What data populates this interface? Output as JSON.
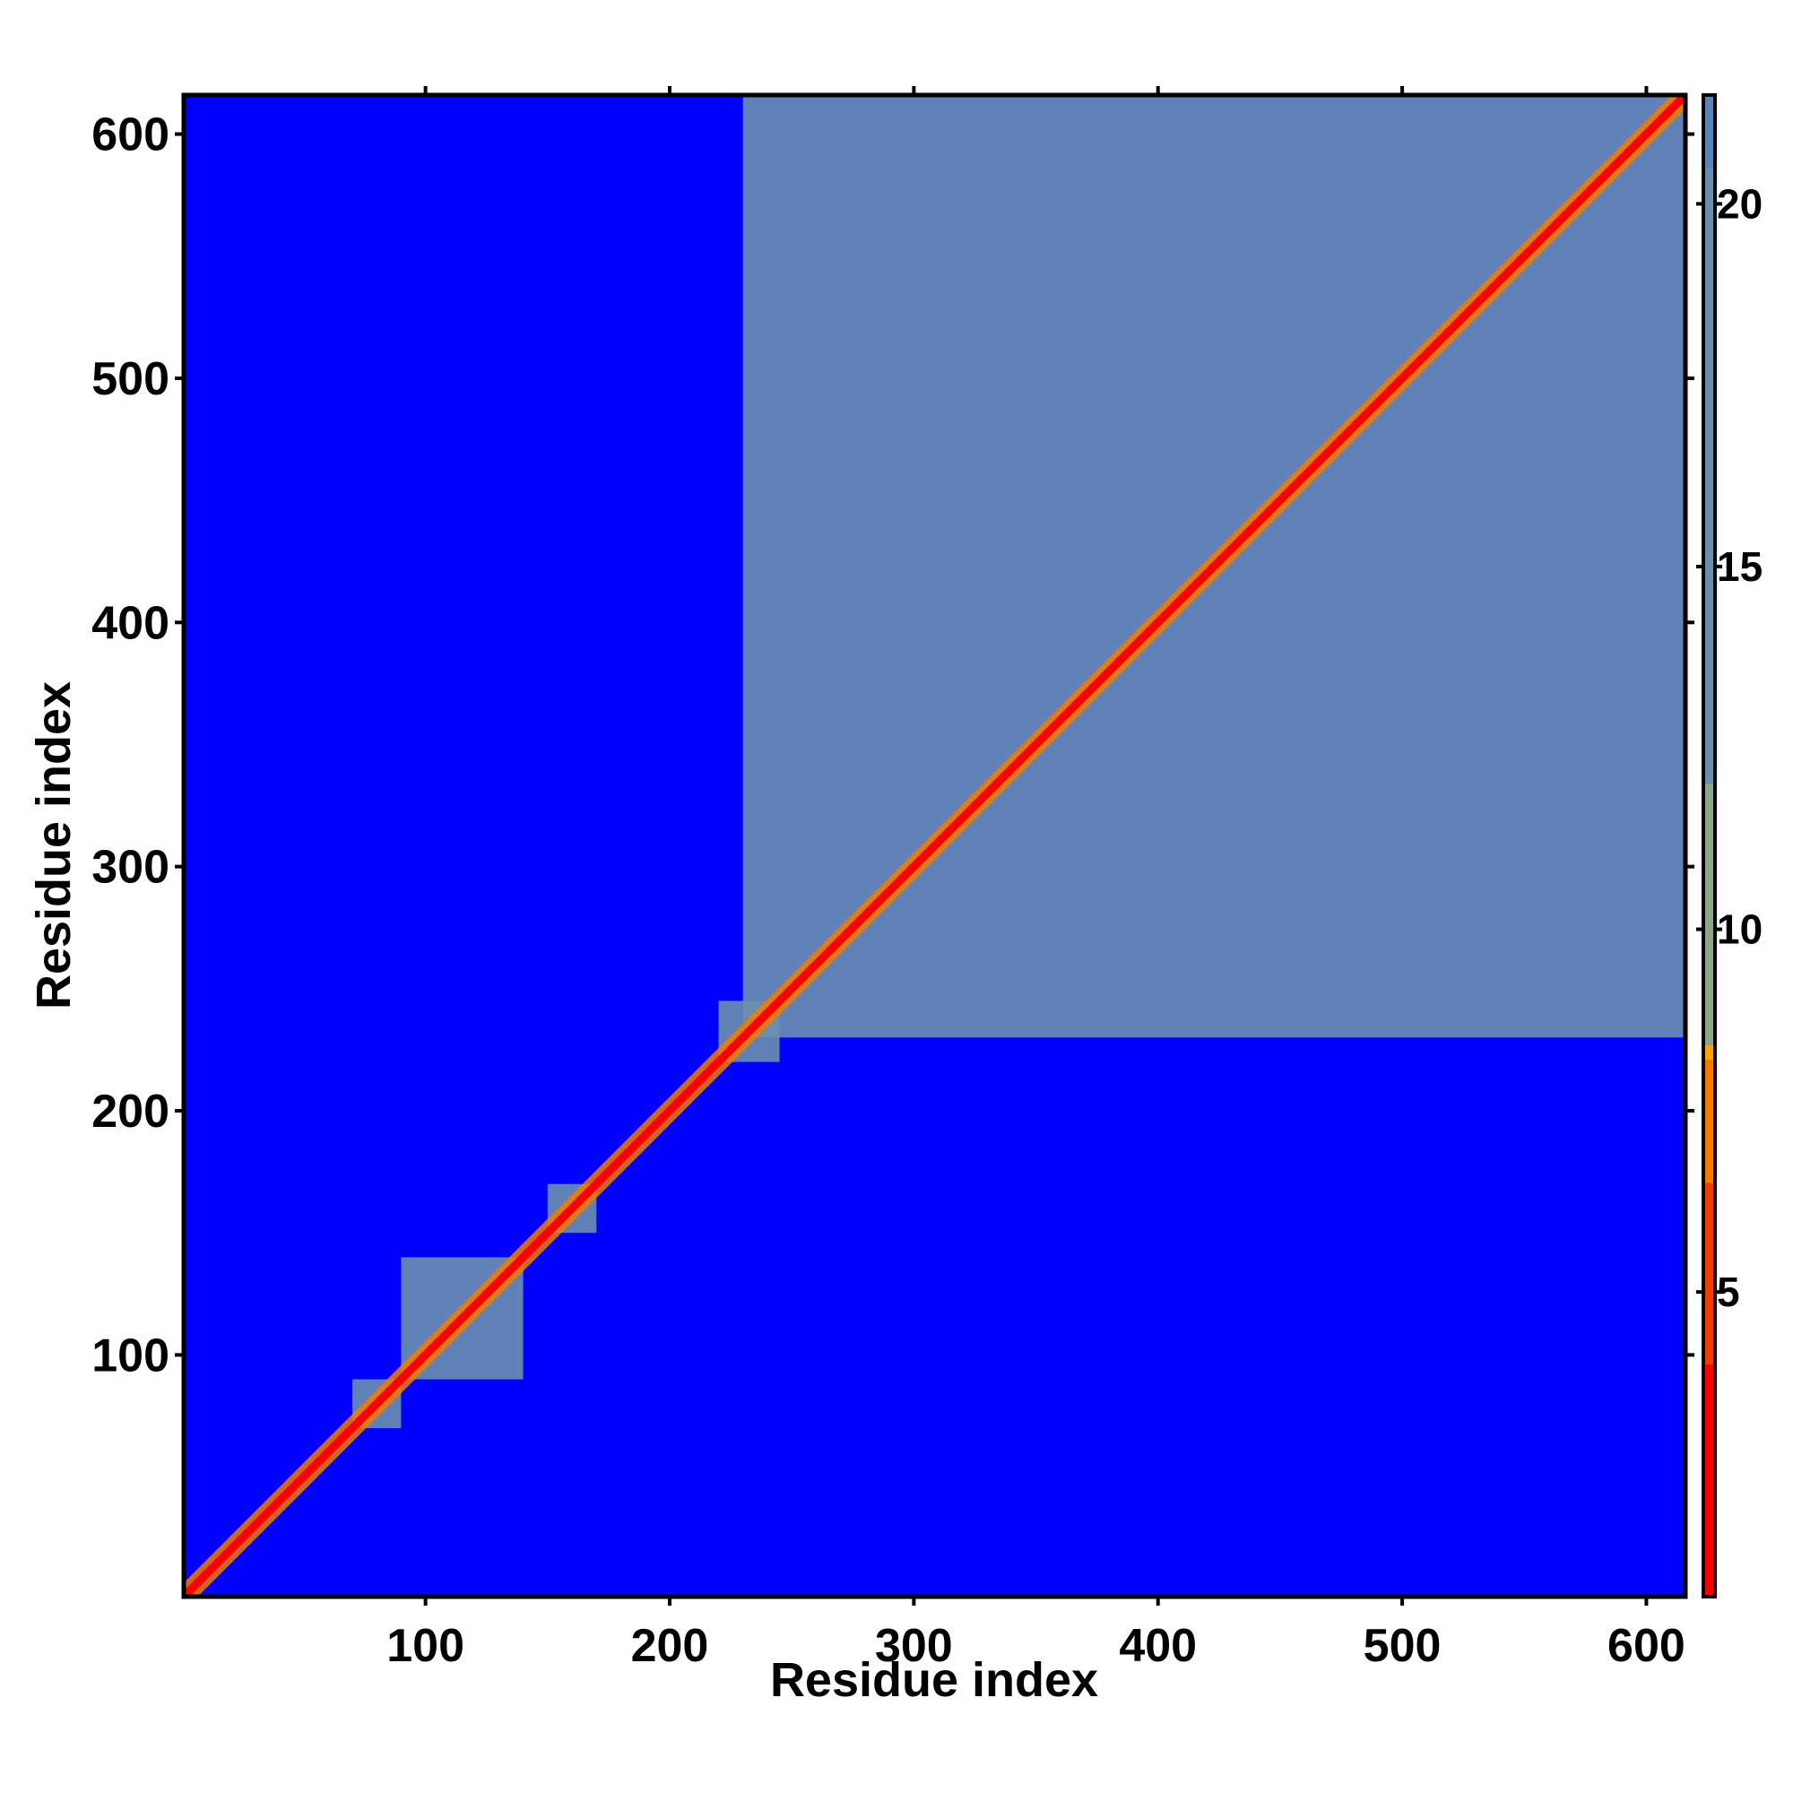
{
  "chart_data": {
    "type": "heatmap",
    "title": "",
    "xlabel": "Residue index",
    "ylabel": "Residue index",
    "xlim": [
      1,
      616
    ],
    "ylim": [
      1,
      616
    ],
    "x_ticks": [
      100,
      200,
      300,
      400,
      500,
      600
    ],
    "y_ticks": [
      100,
      200,
      300,
      400,
      500,
      600
    ],
    "x_tick_labels": [
      "100",
      "200",
      "300",
      "400",
      "500",
      "600"
    ],
    "y_tick_labels": [
      "100",
      "200",
      "300",
      "400",
      "500",
      "600"
    ],
    "colorbar": {
      "range": [
        0.8,
        21.5
      ],
      "ticks": [
        5,
        10,
        15,
        20
      ],
      "tick_labels": [
        "5",
        "10",
        "15",
        "20"
      ],
      "color_stops": [
        {
          "value": 0.8,
          "color": "#ff0000"
        },
        {
          "value": 4.0,
          "color": "#f13c00"
        },
        {
          "value": 6.5,
          "color": "#f57a00"
        },
        {
          "value": 8.2,
          "color": "#ffa500"
        },
        {
          "value": 8.4,
          "color": "#8fa58a"
        },
        {
          "value": 12.0,
          "color": "#6a8fae"
        },
        {
          "value": 20.5,
          "color": "#5a86b8"
        },
        {
          "value": 21.5,
          "color": "#0000ff"
        }
      ]
    },
    "background_value": 21.5,
    "background_color": "#0000ff",
    "diagonal": {
      "from": 1,
      "to": 616,
      "value": 1.5,
      "color": "#ff0000"
    },
    "contact_regions": [
      {
        "range": [
          70,
          90
        ],
        "value": 17
      },
      {
        "range": [
          90,
          140
        ],
        "value": 17
      },
      {
        "range": [
          150,
          170
        ],
        "value": 17
      },
      {
        "range": [
          220,
          245
        ],
        "value": 17
      },
      {
        "range": [
          230,
          620
        ],
        "value": 17
      }
    ],
    "grid": false,
    "legend": "colorbar-right"
  }
}
